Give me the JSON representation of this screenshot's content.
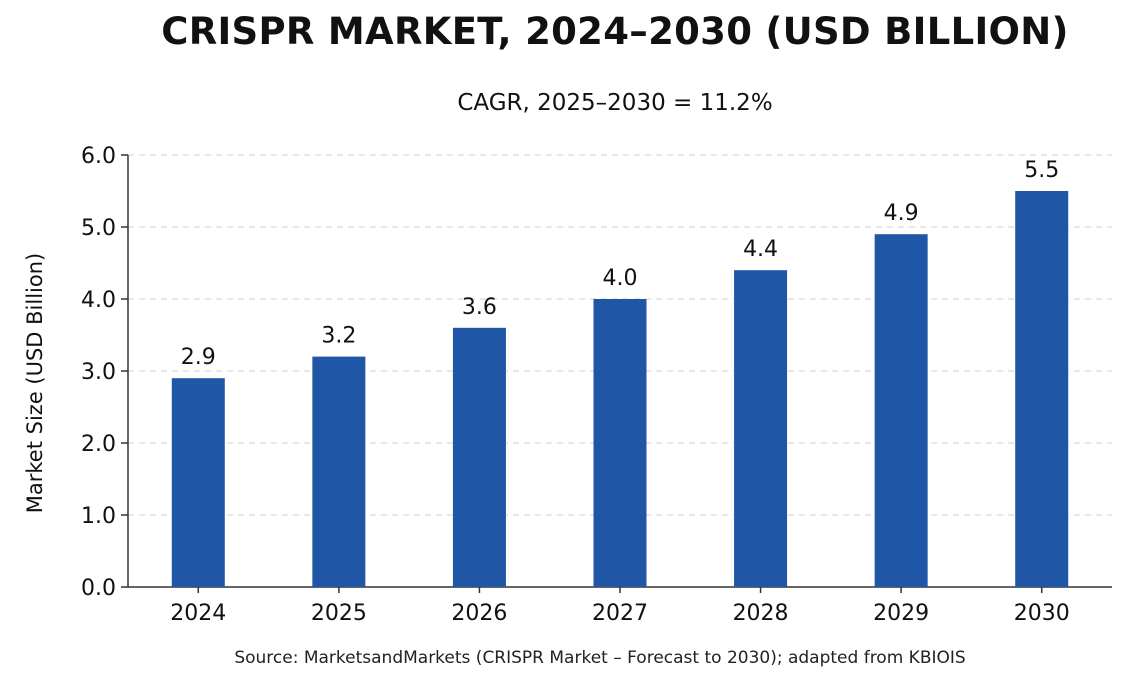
{
  "chart_data": {
    "type": "bar",
    "title": "CRISPR MARKET, 2024–2030 (USD BILLION)",
    "subtitle": "CAGR, 2025–2030 = 11.2%",
    "xlabel": "",
    "ylabel": "Market Size (USD Billion)",
    "categories": [
      "2024",
      "2025",
      "2026",
      "2027",
      "2028",
      "2029",
      "2030"
    ],
    "values": [
      2.9,
      3.2,
      3.6,
      4.0,
      4.4,
      4.9,
      5.5
    ],
    "data_labels": [
      "2.9",
      "3.2",
      "3.6",
      "4.0",
      "4.4",
      "4.9",
      "5.5"
    ],
    "ylim": [
      0,
      6
    ],
    "yticks": [
      0,
      1,
      2,
      3,
      4,
      5,
      6
    ],
    "ytick_labels": [
      "0.0",
      "1.0",
      "2.0",
      "3.0",
      "4.0",
      "5.0",
      "6.0"
    ],
    "grid": true,
    "bar_color": "#1F56A5",
    "source": "Source: MarketsandMarkets (CRISPR Market – Forecast to 2030); adapted from KBIOIS"
  }
}
